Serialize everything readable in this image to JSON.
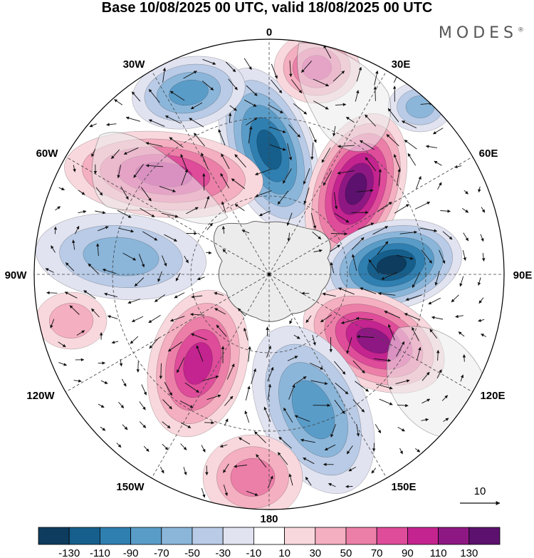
{
  "title": "Base 10/08/2025 00 UTC, valid 18/08/2025 00 UTC",
  "brand": {
    "name": "MODES",
    "mark": "®"
  },
  "longitude_labels": [
    "0",
    "30E",
    "60E",
    "90E",
    "120E",
    "150E",
    "180",
    "150W",
    "120W",
    "90W",
    "60W",
    "30W"
  ],
  "vector_reference": {
    "value": "10"
  },
  "colorbar": {
    "ticks": [
      "-130",
      "-110",
      "-90",
      "-70",
      "-50",
      "-30",
      "-10",
      "10",
      "30",
      "50",
      "70",
      "90",
      "110",
      "130"
    ],
    "colors": [
      "#0e3c5e",
      "#165f8c",
      "#2f7fb1",
      "#5a9cc8",
      "#8bb6da",
      "#b9cbe6",
      "#e1e3f1",
      "#ffffff",
      "#f9d8dd",
      "#f4afc0",
      "#ec7fa8",
      "#de4c9a",
      "#c4248f",
      "#8e1883",
      "#5c116e"
    ]
  },
  "anomaly_centers": [
    {
      "sign": "negative",
      "level": 6
    },
    {
      "sign": "positive",
      "level": 7
    },
    {
      "sign": "negative",
      "level": 7
    },
    {
      "sign": "positive",
      "level": 6
    },
    {
      "sign": "negative",
      "level": 4
    },
    {
      "sign": "positive",
      "level": 3
    },
    {
      "sign": "positive",
      "level": 5
    },
    {
      "sign": "negative",
      "level": 3
    },
    {
      "sign": "positive",
      "level": 5
    },
    {
      "sign": "negative",
      "level": 4
    },
    {
      "sign": "positive",
      "level": 2
    }
  ],
  "colors": {
    "land": "#ececec",
    "grid": "#444444",
    "border": "#000000"
  }
}
